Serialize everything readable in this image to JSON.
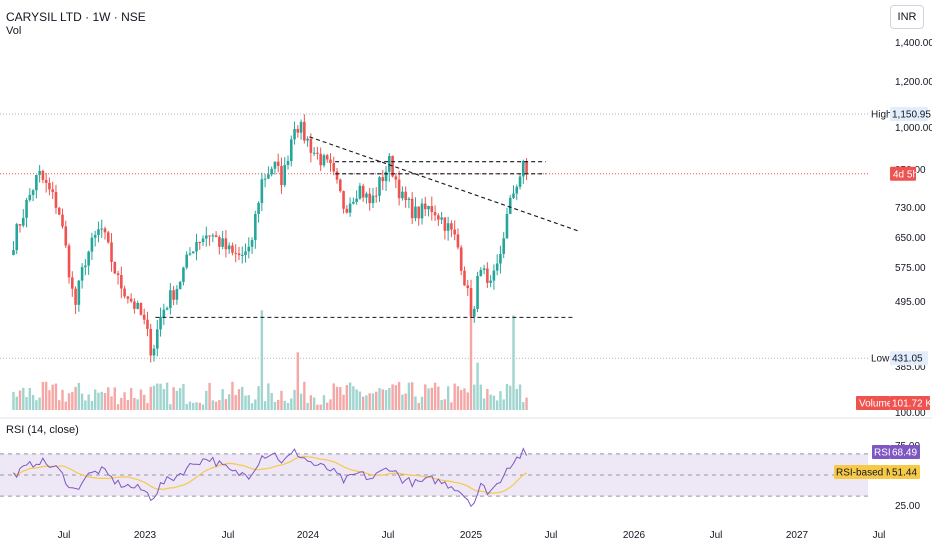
{
  "header": {
    "symbol_title": "CARYSIL LTD · 1W · NSE",
    "volume_legend": "Vol",
    "currency": "INR"
  },
  "rsi_panel": {
    "legend": "RSI (14, close)"
  },
  "colors": {
    "up": "#26a69a",
    "down": "#ef5350",
    "up_volume": "#9fd4cf",
    "down_volume": "#f5a7a6",
    "rsi_line": "#7e57c2",
    "rsi_ma": "#f7c948",
    "rsi_band_fill": "#ede7f6",
    "high_low_line": "#b2b5be",
    "price_line": "#ef5350"
  },
  "chart_data": [
    {
      "type": "candlestick",
      "x_axis_labels": [
        "Jul",
        "2023",
        "Jul",
        "2024",
        "Jul",
        "2025",
        "Jul",
        "2026",
        "Jul",
        "2027",
        "Jul"
      ],
      "y_axis_labels": [
        "1,400.00",
        "1,200.00",
        "1,000.00",
        "850.00",
        "730.00",
        "650.00",
        "575.00",
        "495.00",
        "385.00",
        "100.00"
      ],
      "y_scale": "log",
      "ylim": [
        350,
        1550
      ],
      "anchors": [
        {
          "date": "2022-06-01",
          "close": 690
        },
        {
          "date": "2022-07-25",
          "close": 905
        },
        {
          "date": "2022-09-05",
          "close": 790
        },
        {
          "date": "2022-10-10",
          "close": 525
        },
        {
          "date": "2022-11-01",
          "close": 640
        },
        {
          "date": "2022-12-05",
          "close": 730
        },
        {
          "date": "2023-01-10",
          "close": 590
        },
        {
          "date": "2023-03-05",
          "close": 505
        },
        {
          "date": "2023-03-25",
          "close": 440
        },
        {
          "date": "2023-04-15",
          "close": 520
        },
        {
          "date": "2023-05-20",
          "close": 580
        },
        {
          "date": "2023-06-25",
          "close": 690
        },
        {
          "date": "2023-07-25",
          "close": 715
        },
        {
          "date": "2023-09-15",
          "close": 650
        },
        {
          "date": "2023-10-20",
          "close": 655
        },
        {
          "date": "2023-11-15",
          "close": 880
        },
        {
          "date": "2023-12-10",
          "close": 940
        },
        {
          "date": "2023-12-30",
          "close": 880
        },
        {
          "date": "2024-01-25",
          "close": 1120
        },
        {
          "date": "2024-03-05",
          "close": 990
        },
        {
          "date": "2024-04-10",
          "close": 920
        },
        {
          "date": "2024-05-10",
          "close": 790
        },
        {
          "date": "2024-06-10",
          "close": 860
        },
        {
          "date": "2024-07-05",
          "close": 800
        },
        {
          "date": "2024-08-15",
          "close": 950
        },
        {
          "date": "2024-09-10",
          "close": 820
        },
        {
          "date": "2024-10-10",
          "close": 770
        },
        {
          "date": "2024-11-15",
          "close": 790
        },
        {
          "date": "2024-12-10",
          "close": 745
        },
        {
          "date": "2025-01-05",
          "close": 690
        },
        {
          "date": "2025-01-28",
          "close": 560
        },
        {
          "date": "2025-02-10",
          "close": 500
        },
        {
          "date": "2025-02-25",
          "close": 640
        },
        {
          "date": "2025-03-15",
          "close": 555
        },
        {
          "date": "2025-04-05",
          "close": 630
        },
        {
          "date": "2025-04-20",
          "close": 740
        },
        {
          "date": "2025-05-10",
          "close": 860
        },
        {
          "date": "2025-05-30",
          "close": 935
        },
        {
          "date": "2025-06-08",
          "close": 905
        }
      ],
      "volume_spikes": [
        {
          "date": "2023-11-15",
          "volume_ratio": 0.95
        },
        {
          "date": "2025-02-03",
          "volume_ratio": 1.0
        },
        {
          "date": "2025-02-17",
          "volume_ratio": 0.45
        },
        {
          "date": "2025-05-05",
          "volume_ratio": 0.9
        },
        {
          "date": "2024-01-30",
          "volume_ratio": 0.55
        }
      ],
      "horizontal_levels": [
        {
          "label": "High",
          "value_text": "1,150.95",
          "value": 1150.95
        },
        {
          "label": "Low",
          "value_text": "431.05",
          "value": 431.05
        }
      ],
      "current_price_tag": "4d 5h",
      "current_price": 905,
      "volume_tag": {
        "label": "Volume",
        "value": "101.72 K"
      },
      "drawings": [
        {
          "kind": "dashed-line",
          "from": {
            "date": "2023-04-01",
            "price": 508
          },
          "to": {
            "date": "2025-09-15",
            "price": 508
          }
        },
        {
          "kind": "dashed-line",
          "from": {
            "date": "2024-02-25",
            "price": 1050
          },
          "to": {
            "date": "2025-09-25",
            "price": 718
          }
        },
        {
          "kind": "dashed-line",
          "from": {
            "date": "2024-04-20",
            "price": 950
          },
          "to": {
            "date": "2025-07-15",
            "price": 950
          }
        },
        {
          "kind": "dashed-line",
          "from": {
            "date": "2024-04-20",
            "price": 905
          },
          "to": {
            "date": "2025-07-15",
            "price": 905
          }
        }
      ]
    },
    {
      "type": "line",
      "title": "RSI (14, close)",
      "y_axis_labels": [
        "75.00",
        "25.00"
      ],
      "ylim": [
        15,
        85
      ],
      "bands": [
        70,
        50,
        30
      ],
      "series": [
        {
          "name": "RSI",
          "last_value": "68.49"
        },
        {
          "name": "RSI-based MA",
          "last_value": "51.44"
        }
      ],
      "anchors": [
        {
          "date": "2022-06-01",
          "rsi": 50
        },
        {
          "date": "2022-07-25",
          "rsi": 64
        },
        {
          "date": "2022-09-05",
          "rsi": 55
        },
        {
          "date": "2022-10-10",
          "rsi": 34
        },
        {
          "date": "2022-11-01",
          "rsi": 48
        },
        {
          "date": "2022-12-05",
          "rsi": 55
        },
        {
          "date": "2023-01-10",
          "rsi": 42
        },
        {
          "date": "2023-03-05",
          "rsi": 36
        },
        {
          "date": "2023-03-25",
          "rsi": 28
        },
        {
          "date": "2023-04-15",
          "rsi": 42
        },
        {
          "date": "2023-05-20",
          "rsi": 50
        },
        {
          "date": "2023-06-25",
          "rsi": 62
        },
        {
          "date": "2023-07-25",
          "rsi": 66
        },
        {
          "date": "2023-09-15",
          "rsi": 52
        },
        {
          "date": "2023-10-20",
          "rsi": 50
        },
        {
          "date": "2023-11-15",
          "rsi": 68
        },
        {
          "date": "2023-12-10",
          "rsi": 71
        },
        {
          "date": "2023-12-30",
          "rsi": 62
        },
        {
          "date": "2024-01-25",
          "rsi": 72
        },
        {
          "date": "2024-03-05",
          "rsi": 60
        },
        {
          "date": "2024-04-10",
          "rsi": 55
        },
        {
          "date": "2024-05-10",
          "rsi": 44
        },
        {
          "date": "2024-06-10",
          "rsi": 52
        },
        {
          "date": "2024-07-05",
          "rsi": 46
        },
        {
          "date": "2024-08-15",
          "rsi": 58
        },
        {
          "date": "2024-09-10",
          "rsi": 46
        },
        {
          "date": "2024-10-10",
          "rsi": 42
        },
        {
          "date": "2024-11-15",
          "rsi": 46
        },
        {
          "date": "2024-12-10",
          "rsi": 42
        },
        {
          "date": "2025-01-05",
          "rsi": 38
        },
        {
          "date": "2025-01-28",
          "rsi": 28
        },
        {
          "date": "2025-02-10",
          "rsi": 22
        },
        {
          "date": "2025-02-25",
          "rsi": 40
        },
        {
          "date": "2025-03-15",
          "rsi": 34
        },
        {
          "date": "2025-04-05",
          "rsi": 42
        },
        {
          "date": "2025-04-20",
          "rsi": 56
        },
        {
          "date": "2025-05-10",
          "rsi": 64
        },
        {
          "date": "2025-05-30",
          "rsi": 72
        },
        {
          "date": "2025-06-08",
          "rsi": 68.49
        }
      ]
    }
  ]
}
